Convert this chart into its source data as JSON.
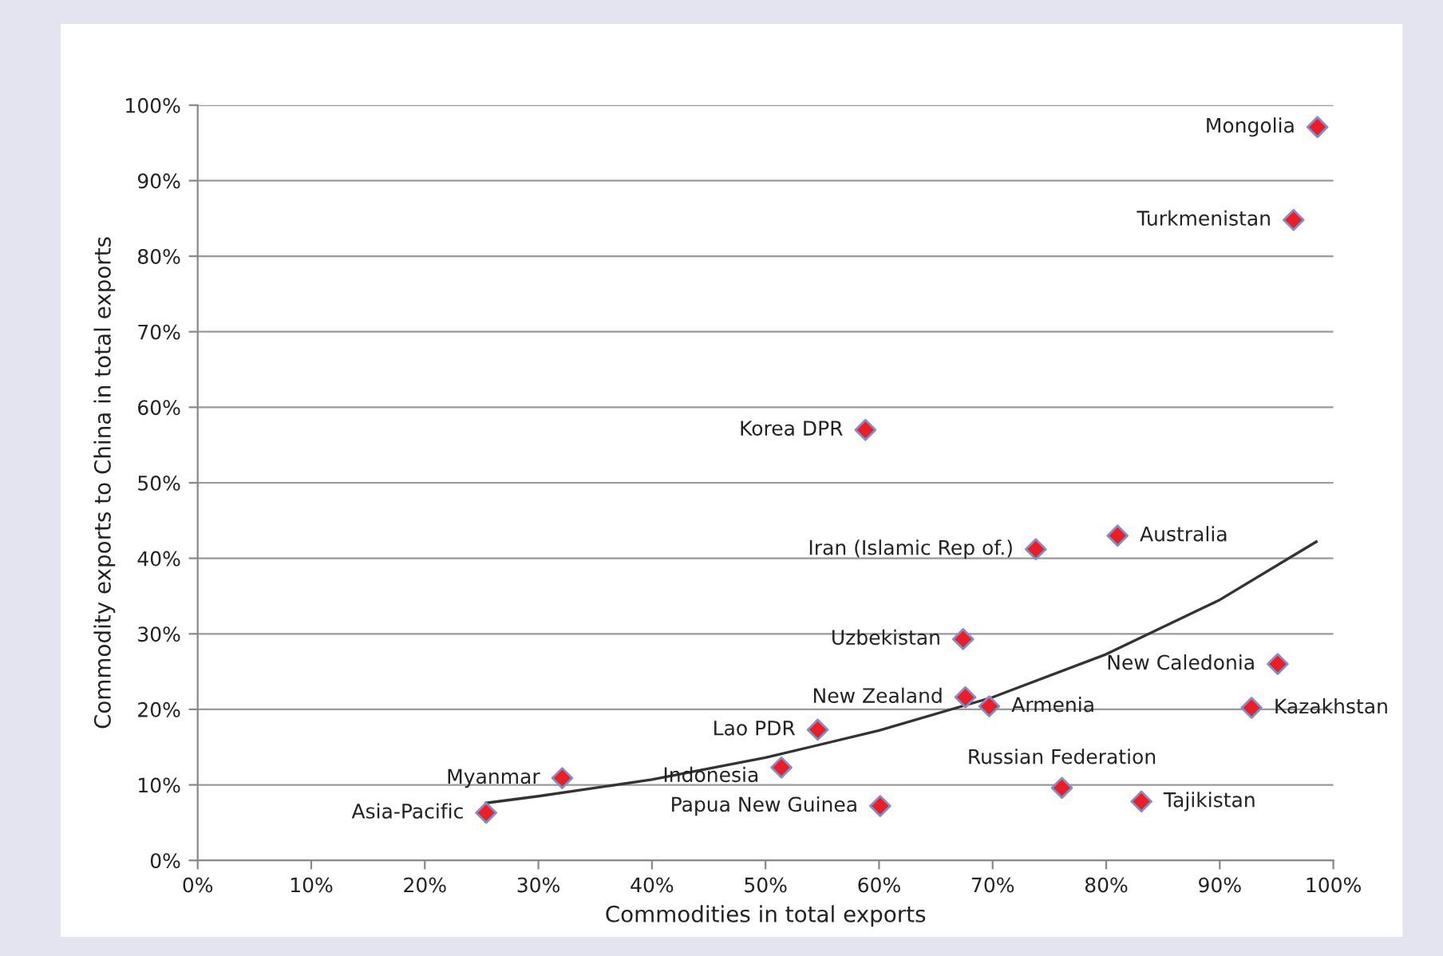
{
  "chart_data": {
    "type": "scatter",
    "xlabel": "Commodities in total exports",
    "ylabel": "Commodity exports to China in total exports",
    "xlim": [
      0,
      100
    ],
    "ylim": [
      0,
      100
    ],
    "xticks": [
      {
        "value": 0,
        "label": "0%"
      },
      {
        "value": 10,
        "label": "10%"
      },
      {
        "value": 20,
        "label": "20%"
      },
      {
        "value": 30,
        "label": "30%"
      },
      {
        "value": 40,
        "label": "40%"
      },
      {
        "value": 50,
        "label": "50%"
      },
      {
        "value": 60,
        "label": "60%"
      },
      {
        "value": 70,
        "label": "70%"
      },
      {
        "value": 80,
        "label": "80%"
      },
      {
        "value": 90,
        "label": "90%"
      },
      {
        "value": 100,
        "label": "100%"
      }
    ],
    "yticks": [
      {
        "value": 0,
        "label": "0%"
      },
      {
        "value": 10,
        "label": "10%"
      },
      {
        "value": 20,
        "label": "20%"
      },
      {
        "value": 30,
        "label": "30%"
      },
      {
        "value": 40,
        "label": "40%"
      },
      {
        "value": 50,
        "label": "50%"
      },
      {
        "value": 60,
        "label": "60%"
      },
      {
        "value": 70,
        "label": "70%"
      },
      {
        "value": 80,
        "label": "80%"
      },
      {
        "value": 90,
        "label": "90%"
      },
      {
        "value": 100,
        "label": "100%"
      }
    ],
    "grid": "y",
    "legend": false,
    "marker": "diamond",
    "series": [
      {
        "color": "#ee1c25",
        "x": [
          98.6,
          96.5,
          58.8,
          73.8,
          81.0,
          67.4,
          95.1,
          67.6,
          69.7,
          92.8,
          54.6,
          32.1,
          51.4,
          60.1,
          76.1,
          83.1,
          25.4
        ],
        "values": [
          97.1,
          84.8,
          57.0,
          41.2,
          43.0,
          29.3,
          26.0,
          21.6,
          20.4,
          20.2,
          17.3,
          10.9,
          12.3,
          7.2,
          9.6,
          7.8,
          6.3
        ]
      },
      {
        "type": "line",
        "color": "#333333",
        "marker": "none",
        "line_style": "solid",
        "x": [
          25.4,
          30,
          40,
          50,
          60,
          70,
          80,
          90,
          98.5
        ],
        "values": [
          7.6,
          8.5,
          10.7,
          13.6,
          17.2,
          21.6,
          27.3,
          34.5,
          42.2
        ]
      }
    ],
    "annotations": [
      {
        "text": "Mongolia",
        "x": 98.6,
        "y": 97.1
      },
      {
        "text": "Turkmenistan",
        "x": 96.5,
        "y": 84.8
      },
      {
        "text": "Korea DPR",
        "x": 58.8,
        "y": 57.0
      },
      {
        "text": "Iran (Islamic Rep of.)",
        "x": 73.8,
        "y": 41.2
      },
      {
        "text": "Australia",
        "x": 81.0,
        "y": 43.0
      },
      {
        "text": "Uzbekistan",
        "x": 67.4,
        "y": 29.3
      },
      {
        "text": "New Caledonia",
        "x": 95.1,
        "y": 26.0
      },
      {
        "text": "New Zealand",
        "x": 67.6,
        "y": 21.6
      },
      {
        "text": "Armenia",
        "x": 69.7,
        "y": 20.4
      },
      {
        "text": "Kazakhstan",
        "x": 92.8,
        "y": 20.2
      },
      {
        "text": "Lao PDR",
        "x": 54.6,
        "y": 17.3
      },
      {
        "text": "Myanmar",
        "x": 32.1,
        "y": 10.9
      },
      {
        "text": "Indonesia",
        "x": 51.4,
        "y": 12.3
      },
      {
        "text": "Papua New Guinea",
        "x": 60.1,
        "y": 7.2
      },
      {
        "text": "Russian Federation",
        "x": 76.1,
        "y": 9.6
      },
      {
        "text": "Tajikistan",
        "x": 83.1,
        "y": 7.8
      },
      {
        "text": "Asia-Pacific",
        "x": 25.4,
        "y": 6.3
      }
    ]
  }
}
